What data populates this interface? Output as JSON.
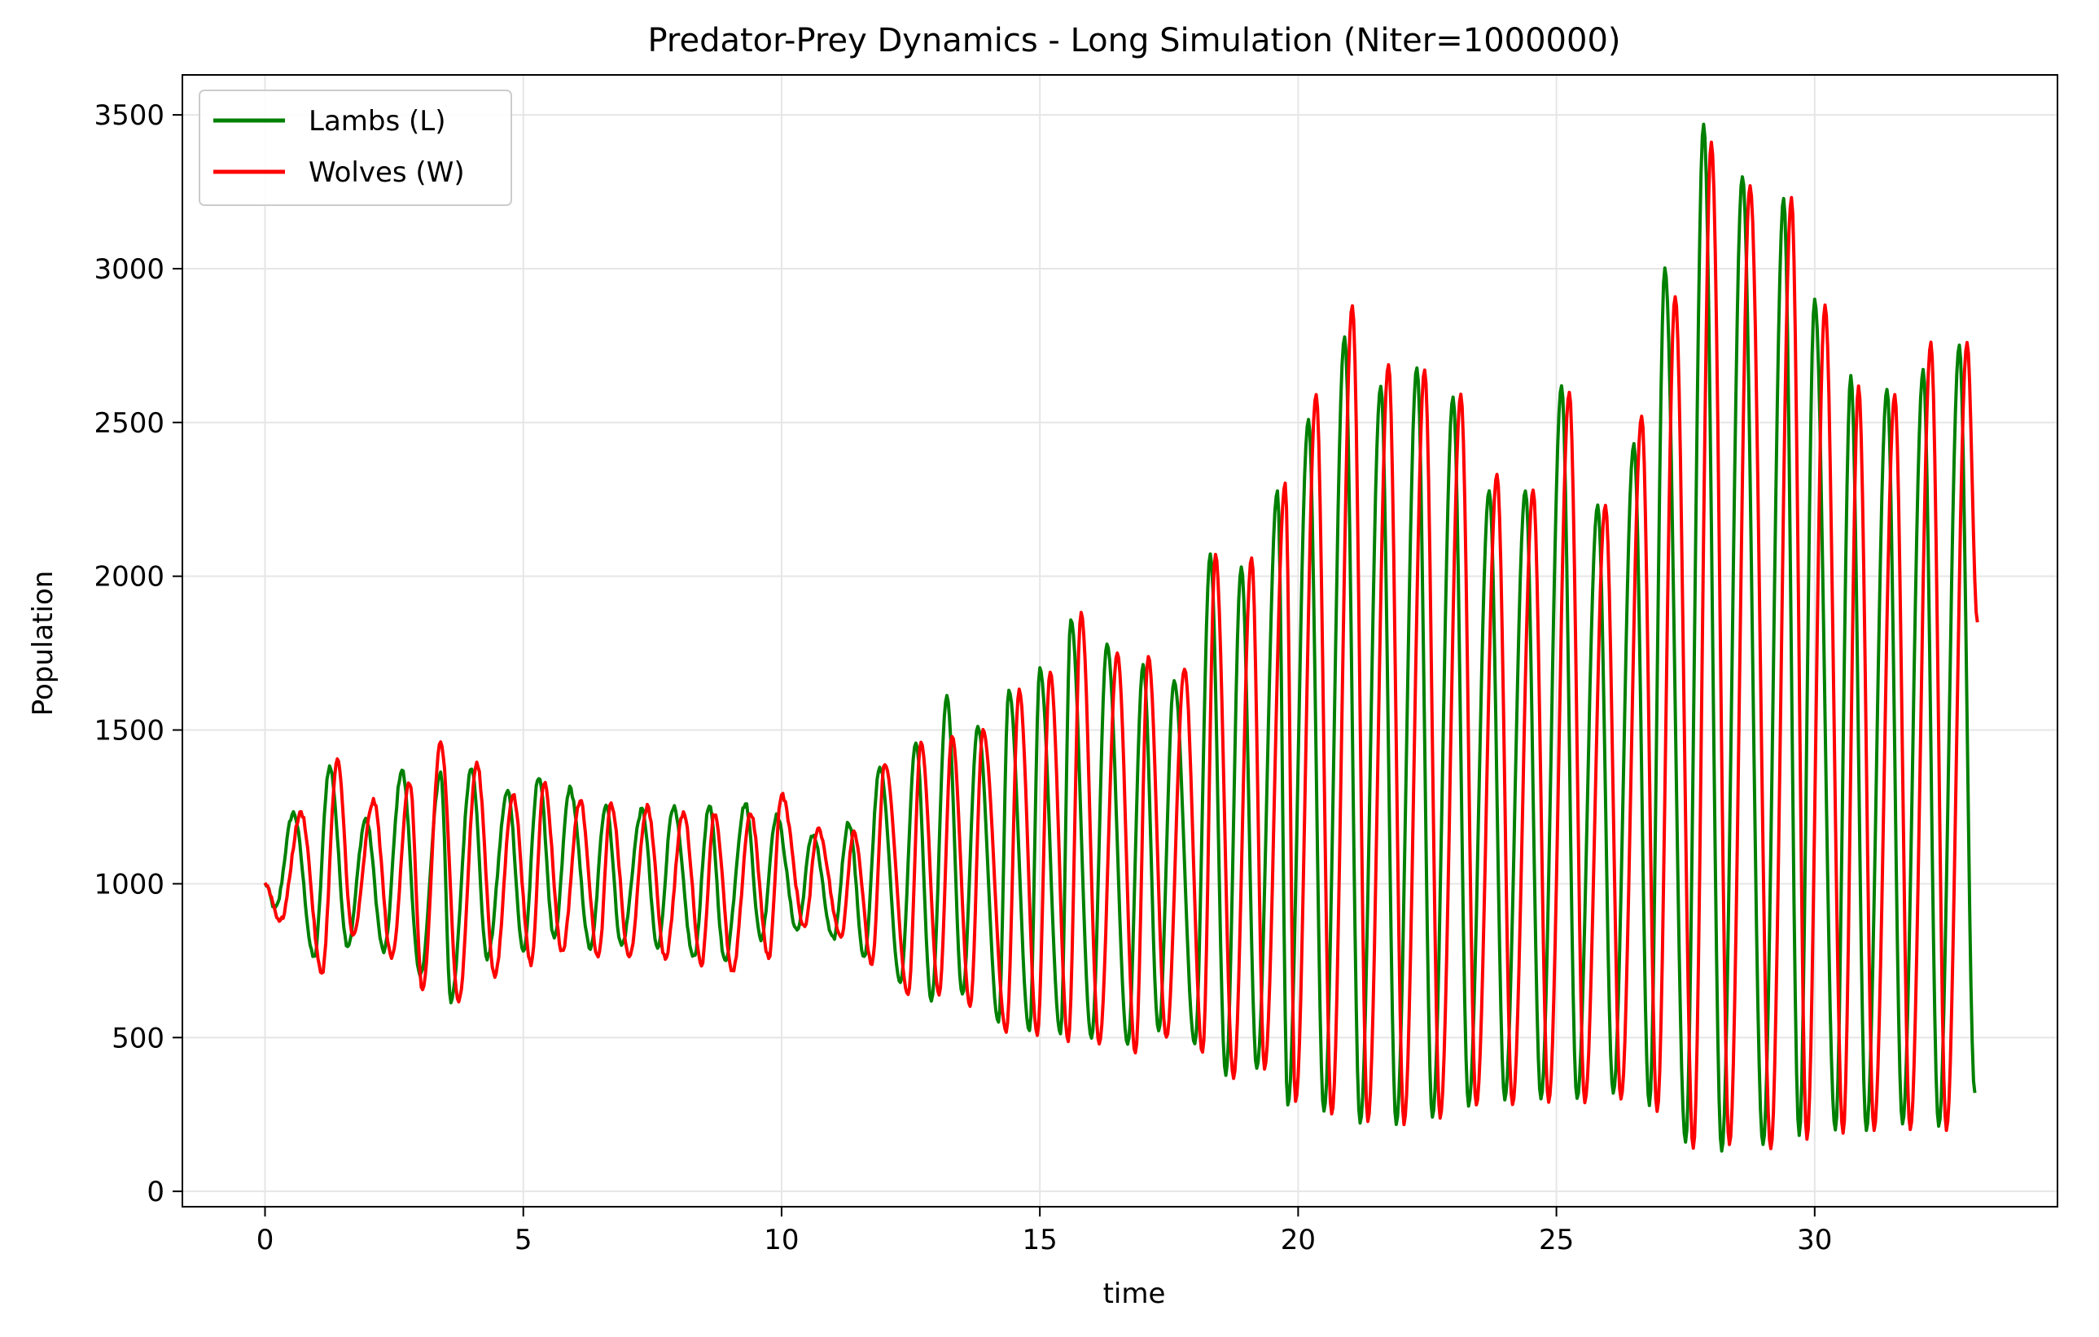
{
  "chart_data": {
    "type": "line",
    "title": "Predator-Prey Dynamics - Long Simulation (Niter=1000000)",
    "xlabel": "time",
    "ylabel": "Population",
    "xlim": [
      -1.6,
      34.7
    ],
    "ylim": [
      -50,
      3630
    ],
    "xticks": [
      0,
      5,
      10,
      15,
      20,
      25,
      30
    ],
    "xtick_labels": [
      "0",
      "5",
      "10",
      "15",
      "20",
      "25",
      "30"
    ],
    "yticks": [
      0,
      500,
      1000,
      1500,
      2000,
      2500,
      3000,
      3500
    ],
    "ytick_labels": [
      "0",
      "500",
      "1000",
      "1500",
      "2000",
      "2500",
      "3000",
      "3500"
    ],
    "grid": true,
    "legend_position": "upper-left",
    "period": 0.71,
    "series": [
      {
        "name": "Lambs (L)",
        "color": "#008000",
        "cycle_peaks": [
          {
            "t": 0.55,
            "v": 1230
          },
          {
            "t": 1.25,
            "v": 1380
          },
          {
            "t": 1.95,
            "v": 1210
          },
          {
            "t": 2.65,
            "v": 1370
          },
          {
            "t": 3.4,
            "v": 1360
          },
          {
            "t": 4.0,
            "v": 1380
          },
          {
            "t": 4.7,
            "v": 1300
          },
          {
            "t": 5.3,
            "v": 1350
          },
          {
            "t": 5.9,
            "v": 1310
          },
          {
            "t": 6.6,
            "v": 1260
          },
          {
            "t": 7.3,
            "v": 1240
          },
          {
            "t": 7.9,
            "v": 1250
          },
          {
            "t": 8.6,
            "v": 1250
          },
          {
            "t": 9.3,
            "v": 1260
          },
          {
            "t": 9.9,
            "v": 1220
          },
          {
            "t": 10.6,
            "v": 1160
          },
          {
            "t": 11.3,
            "v": 1200
          },
          {
            "t": 11.9,
            "v": 1380
          },
          {
            "t": 12.6,
            "v": 1460
          },
          {
            "t": 13.2,
            "v": 1610
          },
          {
            "t": 13.8,
            "v": 1510
          },
          {
            "t": 14.4,
            "v": 1630
          },
          {
            "t": 15.0,
            "v": 1700
          },
          {
            "t": 15.6,
            "v": 1860
          },
          {
            "t": 16.3,
            "v": 1780
          },
          {
            "t": 17.0,
            "v": 1710
          },
          {
            "t": 17.6,
            "v": 1660
          },
          {
            "t": 18.3,
            "v": 2070
          },
          {
            "t": 18.9,
            "v": 2030
          },
          {
            "t": 19.6,
            "v": 2280
          },
          {
            "t": 20.2,
            "v": 2510
          },
          {
            "t": 20.9,
            "v": 2780
          },
          {
            "t": 21.6,
            "v": 2620
          },
          {
            "t": 22.3,
            "v": 2680
          },
          {
            "t": 23.0,
            "v": 2580
          },
          {
            "t": 23.7,
            "v": 2280
          },
          {
            "t": 24.4,
            "v": 2280
          },
          {
            "t": 25.1,
            "v": 2620
          },
          {
            "t": 25.8,
            "v": 2230
          },
          {
            "t": 26.5,
            "v": 2430
          },
          {
            "t": 27.1,
            "v": 3000
          },
          {
            "t": 27.85,
            "v": 3470
          },
          {
            "t": 28.6,
            "v": 3300
          },
          {
            "t": 29.4,
            "v": 3230
          },
          {
            "t": 30.0,
            "v": 2900
          },
          {
            "t": 30.7,
            "v": 2650
          },
          {
            "t": 31.4,
            "v": 2610
          },
          {
            "t": 32.1,
            "v": 2670
          },
          {
            "t": 32.8,
            "v": 2750
          }
        ],
        "cycle_troughs": [
          {
            "t": 0.2,
            "v": 920
          },
          {
            "t": 0.95,
            "v": 760
          },
          {
            "t": 1.6,
            "v": 800
          },
          {
            "t": 2.3,
            "v": 780
          },
          {
            "t": 3.0,
            "v": 700
          },
          {
            "t": 3.6,
            "v": 620
          },
          {
            "t": 4.3,
            "v": 760
          },
          {
            "t": 5.0,
            "v": 780
          },
          {
            "t": 5.6,
            "v": 820
          },
          {
            "t": 6.3,
            "v": 790
          },
          {
            "t": 6.9,
            "v": 800
          },
          {
            "t": 7.6,
            "v": 790
          },
          {
            "t": 8.3,
            "v": 760
          },
          {
            "t": 8.9,
            "v": 750
          },
          {
            "t": 9.6,
            "v": 820
          },
          {
            "t": 10.3,
            "v": 850
          },
          {
            "t": 11.0,
            "v": 820
          },
          {
            "t": 11.6,
            "v": 760
          },
          {
            "t": 12.3,
            "v": 680
          },
          {
            "t": 12.9,
            "v": 620
          },
          {
            "t": 13.5,
            "v": 640
          },
          {
            "t": 14.2,
            "v": 550
          },
          {
            "t": 14.8,
            "v": 520
          },
          {
            "t": 15.4,
            "v": 510
          },
          {
            "t": 16.0,
            "v": 500
          },
          {
            "t": 16.7,
            "v": 480
          },
          {
            "t": 17.3,
            "v": 520
          },
          {
            "t": 18.0,
            "v": 480
          },
          {
            "t": 18.6,
            "v": 380
          },
          {
            "t": 19.2,
            "v": 400
          },
          {
            "t": 19.8,
            "v": 280
          },
          {
            "t": 20.5,
            "v": 260
          },
          {
            "t": 21.2,
            "v": 220
          },
          {
            "t": 21.9,
            "v": 220
          },
          {
            "t": 22.6,
            "v": 240
          },
          {
            "t": 23.3,
            "v": 280
          },
          {
            "t": 24.0,
            "v": 300
          },
          {
            "t": 24.7,
            "v": 300
          },
          {
            "t": 25.4,
            "v": 300
          },
          {
            "t": 26.1,
            "v": 320
          },
          {
            "t": 26.8,
            "v": 280
          },
          {
            "t": 27.5,
            "v": 160
          },
          {
            "t": 28.2,
            "v": 130
          },
          {
            "t": 29.0,
            "v": 150
          },
          {
            "t": 29.7,
            "v": 180
          },
          {
            "t": 30.4,
            "v": 200
          },
          {
            "t": 31.0,
            "v": 200
          },
          {
            "t": 31.7,
            "v": 220
          },
          {
            "t": 32.4,
            "v": 210
          },
          {
            "t": 33.1,
            "v": 320
          }
        ]
      },
      {
        "name": "Wolves (W)",
        "color": "#ff0000",
        "cycle_peaks": [
          {
            "t": 0.7,
            "v": 1230
          },
          {
            "t": 1.4,
            "v": 1400
          },
          {
            "t": 2.1,
            "v": 1270
          },
          {
            "t": 2.8,
            "v": 1330
          },
          {
            "t": 3.4,
            "v": 1460
          },
          {
            "t": 4.1,
            "v": 1390
          },
          {
            "t": 4.8,
            "v": 1290
          },
          {
            "t": 5.4,
            "v": 1330
          },
          {
            "t": 6.1,
            "v": 1270
          },
          {
            "t": 6.7,
            "v": 1260
          },
          {
            "t": 7.4,
            "v": 1250
          },
          {
            "t": 8.1,
            "v": 1230
          },
          {
            "t": 8.7,
            "v": 1230
          },
          {
            "t": 9.4,
            "v": 1230
          },
          {
            "t": 10.0,
            "v": 1290
          },
          {
            "t": 10.7,
            "v": 1180
          },
          {
            "t": 11.4,
            "v": 1170
          },
          {
            "t": 12.0,
            "v": 1390
          },
          {
            "t": 12.7,
            "v": 1460
          },
          {
            "t": 13.3,
            "v": 1480
          },
          {
            "t": 13.9,
            "v": 1500
          },
          {
            "t": 14.6,
            "v": 1630
          },
          {
            "t": 15.2,
            "v": 1690
          },
          {
            "t": 15.8,
            "v": 1880
          },
          {
            "t": 16.5,
            "v": 1750
          },
          {
            "t": 17.1,
            "v": 1740
          },
          {
            "t": 17.8,
            "v": 1700
          },
          {
            "t": 18.4,
            "v": 2070
          },
          {
            "t": 19.1,
            "v": 2060
          },
          {
            "t": 19.75,
            "v": 2300
          },
          {
            "t": 20.35,
            "v": 2590
          },
          {
            "t": 21.05,
            "v": 2880
          },
          {
            "t": 21.75,
            "v": 2690
          },
          {
            "t": 22.45,
            "v": 2670
          },
          {
            "t": 23.15,
            "v": 2590
          },
          {
            "t": 23.85,
            "v": 2330
          },
          {
            "t": 24.55,
            "v": 2280
          },
          {
            "t": 25.25,
            "v": 2600
          },
          {
            "t": 25.95,
            "v": 2230
          },
          {
            "t": 26.65,
            "v": 2520
          },
          {
            "t": 27.3,
            "v": 2910
          },
          {
            "t": 28.0,
            "v": 3410
          },
          {
            "t": 28.75,
            "v": 3270
          },
          {
            "t": 29.55,
            "v": 3230
          },
          {
            "t": 30.2,
            "v": 2880
          },
          {
            "t": 30.85,
            "v": 2620
          },
          {
            "t": 31.55,
            "v": 2590
          },
          {
            "t": 32.25,
            "v": 2760
          },
          {
            "t": 32.95,
            "v": 2760
          }
        ],
        "cycle_troughs": [
          {
            "t": 0.3,
            "v": 880
          },
          {
            "t": 1.1,
            "v": 710
          },
          {
            "t": 1.7,
            "v": 830
          },
          {
            "t": 2.45,
            "v": 760
          },
          {
            "t": 3.05,
            "v": 650
          },
          {
            "t": 3.75,
            "v": 620
          },
          {
            "t": 4.45,
            "v": 700
          },
          {
            "t": 5.15,
            "v": 740
          },
          {
            "t": 5.75,
            "v": 780
          },
          {
            "t": 6.45,
            "v": 760
          },
          {
            "t": 7.05,
            "v": 760
          },
          {
            "t": 7.75,
            "v": 760
          },
          {
            "t": 8.45,
            "v": 740
          },
          {
            "t": 9.05,
            "v": 710
          },
          {
            "t": 9.75,
            "v": 760
          },
          {
            "t": 10.45,
            "v": 860
          },
          {
            "t": 11.15,
            "v": 830
          },
          {
            "t": 11.75,
            "v": 740
          },
          {
            "t": 12.45,
            "v": 640
          },
          {
            "t": 13.05,
            "v": 640
          },
          {
            "t": 13.65,
            "v": 600
          },
          {
            "t": 14.35,
            "v": 520
          },
          {
            "t": 14.95,
            "v": 510
          },
          {
            "t": 15.55,
            "v": 490
          },
          {
            "t": 16.15,
            "v": 480
          },
          {
            "t": 16.85,
            "v": 450
          },
          {
            "t": 17.45,
            "v": 500
          },
          {
            "t": 18.15,
            "v": 450
          },
          {
            "t": 18.75,
            "v": 370
          },
          {
            "t": 19.35,
            "v": 400
          },
          {
            "t": 19.95,
            "v": 290
          },
          {
            "t": 20.65,
            "v": 250
          },
          {
            "t": 21.35,
            "v": 230
          },
          {
            "t": 22.05,
            "v": 220
          },
          {
            "t": 22.75,
            "v": 240
          },
          {
            "t": 23.45,
            "v": 280
          },
          {
            "t": 24.15,
            "v": 280
          },
          {
            "t": 24.85,
            "v": 290
          },
          {
            "t": 25.55,
            "v": 290
          },
          {
            "t": 26.25,
            "v": 300
          },
          {
            "t": 26.95,
            "v": 260
          },
          {
            "t": 27.65,
            "v": 140
          },
          {
            "t": 28.35,
            "v": 150
          },
          {
            "t": 29.15,
            "v": 140
          },
          {
            "t": 29.85,
            "v": 170
          },
          {
            "t": 30.55,
            "v": 190
          },
          {
            "t": 31.15,
            "v": 200
          },
          {
            "t": 31.85,
            "v": 200
          },
          {
            "t": 32.55,
            "v": 200
          },
          {
            "t": 33.15,
            "v": 1850
          }
        ]
      }
    ]
  }
}
